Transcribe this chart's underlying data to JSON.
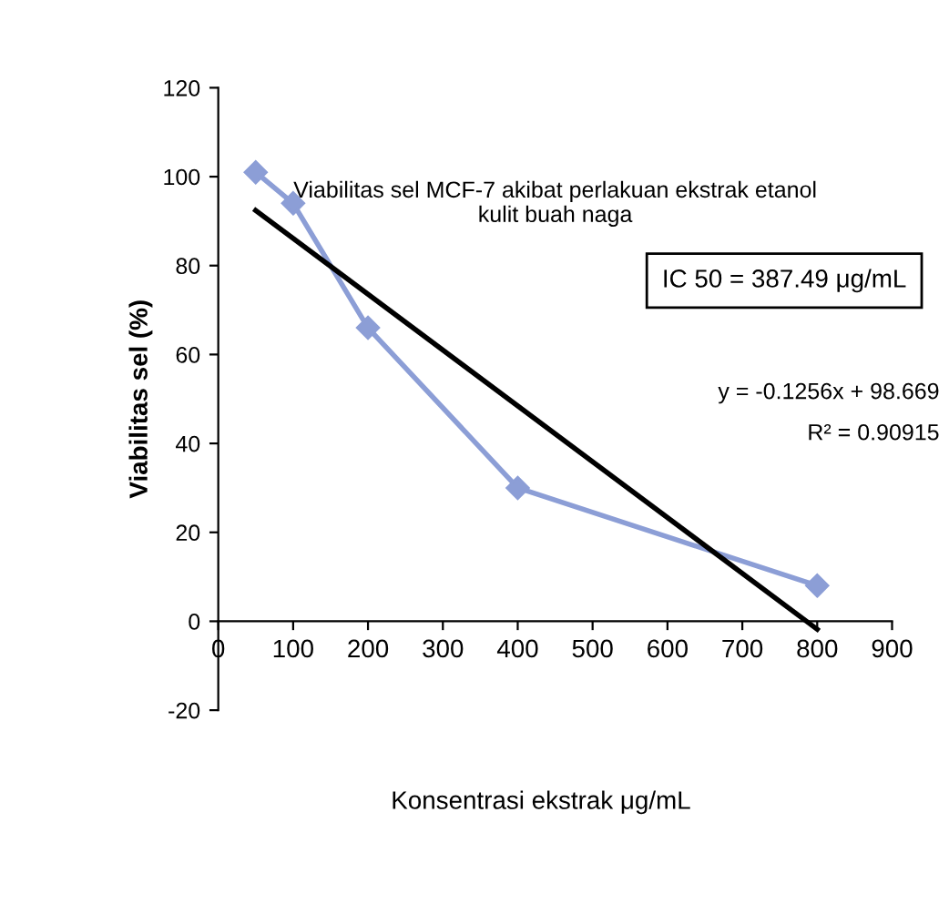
{
  "chart_data": {
    "type": "line",
    "title": "Viabilitas sel MCF-7 akibat perlakuan ekstrak etanol\nkulit buah naga",
    "xlabel": "Konsentrasi ekstrak μg/mL",
    "ylabel": "Viabilitas sel (%)",
    "series": [
      {
        "color": "#8c9ed6",
        "x": [
          50,
          100,
          200,
          400,
          800
        ],
        "values": [
          101,
          94,
          66,
          30,
          8
        ],
        "marker": "diamond"
      },
      {
        "color": "#000000",
        "x": [
          50,
          800
        ],
        "values": [
          92.4,
          -1.8
        ],
        "marker": "none"
      }
    ],
    "xlim": [
      0,
      900
    ],
    "xticks": [
      0,
      100,
      200,
      300,
      400,
      500,
      600,
      700,
      800,
      900
    ],
    "ylim": [
      -20,
      120
    ],
    "yticks": [
      -20,
      0,
      20,
      40,
      60,
      80,
      100,
      120
    ],
    "grid": false,
    "legend": false,
    "annotations": [
      "IC 50 = 387.49 μg/mL",
      "y = -0.1256x + 98.669",
      "R² = 0.90915"
    ]
  }
}
